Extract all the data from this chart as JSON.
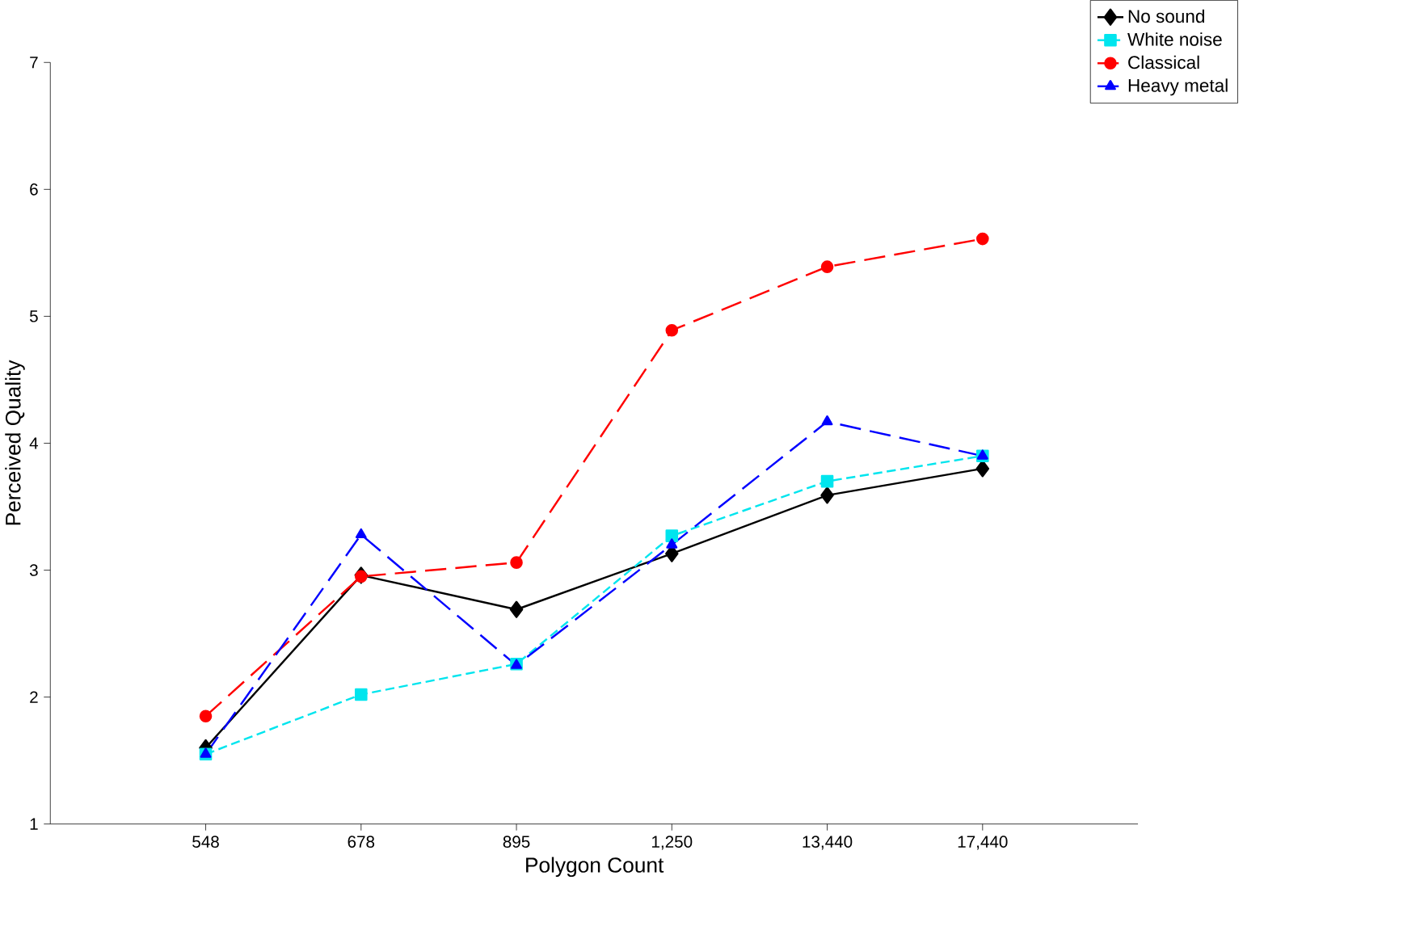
{
  "chart_data": {
    "type": "line",
    "xlabel": "Polygon Count",
    "ylabel": "Perceived Quality",
    "categories": [
      "548",
      "678",
      "895",
      "1,250",
      "13,440",
      "17,440"
    ],
    "ylim": [
      1,
      7
    ],
    "yticks": [
      1,
      2,
      3,
      4,
      5,
      6,
      7
    ],
    "legend": "top right",
    "grid": false,
    "series": [
      {
        "name": "No sound",
        "color": "#000000",
        "marker": "diamond",
        "line_style": "solid",
        "values": [
          1.6,
          2.96,
          2.69,
          3.13,
          3.59,
          3.8
        ]
      },
      {
        "name": "White noise",
        "color": "#00e5ee",
        "marker": "square",
        "line_style": "dashed",
        "values": [
          1.55,
          2.02,
          2.26,
          3.27,
          3.7,
          3.9
        ]
      },
      {
        "name": "Classical",
        "color": "#ff0000",
        "marker": "circle",
        "line_style": "long dashed",
        "values": [
          1.85,
          2.95,
          3.06,
          4.89,
          5.39,
          5.61
        ]
      },
      {
        "name": "Heavy metal",
        "color": "#0000ff",
        "marker": "triangle",
        "line_style": "long dashed",
        "values": [
          1.55,
          3.28,
          2.25,
          3.2,
          4.17,
          3.9
        ]
      }
    ]
  }
}
